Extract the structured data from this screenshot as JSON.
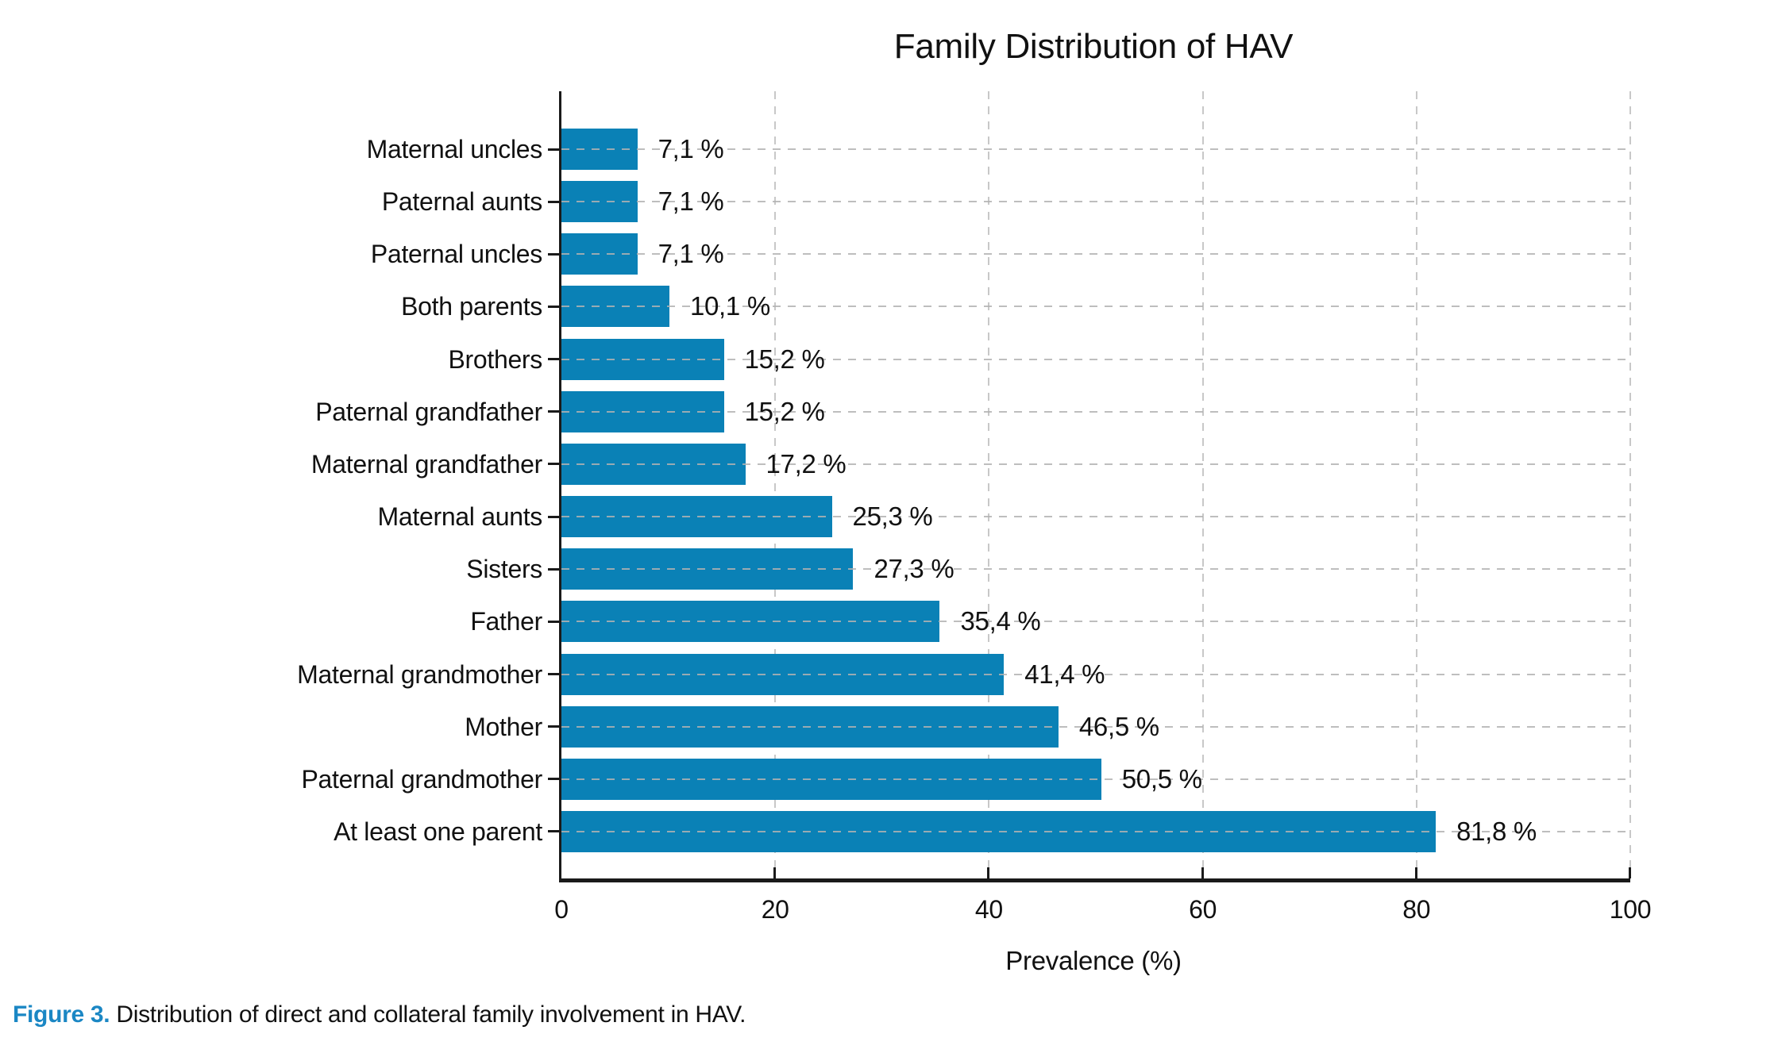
{
  "chart_data": {
    "type": "bar",
    "orientation": "horizontal",
    "title": "Family Distribution of HAV",
    "xlabel": "Prevalence (%)",
    "xlim": [
      0,
      100
    ],
    "xticks": [
      0,
      20,
      40,
      60,
      80,
      100
    ],
    "grid": "dashed, vertical lines behind bars, horizontal lines over bars",
    "legend": "none",
    "bar_color": "#0a81b6",
    "categories": [
      "Maternal uncles",
      "Paternal aunts",
      "Paternal uncles",
      "Both parents",
      "Brothers",
      "Paternal grandfather",
      "Maternal grandfather",
      "Maternal aunts",
      "Sisters",
      "Father",
      "Maternal grandmother",
      "Mother",
      "Paternal grandmother",
      "At least one parent"
    ],
    "values": [
      7.1,
      7.1,
      7.1,
      10.1,
      15.2,
      15.2,
      17.2,
      25.3,
      27.3,
      35.4,
      41.4,
      46.5,
      50.5,
      81.8
    ],
    "value_labels": [
      "7,1 %",
      "7,1 %",
      "7,1 %",
      "10,1 %",
      "15,2 %",
      "15,2 %",
      "17,2 %",
      "25,3 %",
      "27,3 %",
      "35,4 %",
      "41,4 %",
      "46,5 %",
      "50,5 %",
      "81,8 %"
    ]
  },
  "caption": {
    "label": "Figure 3.",
    "text": "Distribution of direct and collateral family involvement in HAV."
  },
  "colors": {
    "caption_accent": "#1b87c4",
    "bar": "#0a81b6",
    "axis": "#1a1a1a",
    "grid": "#c8c8c8",
    "text": "#111111"
  }
}
